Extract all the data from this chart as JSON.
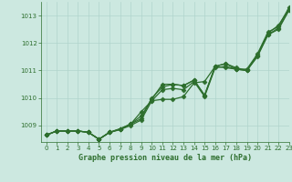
{
  "title": "Graphe pression niveau de la mer (hPa)",
  "xlim": [
    -0.5,
    23
  ],
  "ylim": [
    1008.4,
    1013.5
  ],
  "yticks": [
    1009,
    1010,
    1011,
    1012,
    1013
  ],
  "xticks": [
    0,
    1,
    2,
    3,
    4,
    5,
    6,
    7,
    8,
    9,
    10,
    11,
    12,
    13,
    14,
    15,
    16,
    17,
    18,
    19,
    20,
    21,
    22,
    23
  ],
  "bg_color": "#cce8e0",
  "grid_color": "#b0d4cc",
  "line_color": "#2d6e2d",
  "series1": [
    1008.65,
    1008.8,
    1008.8,
    1008.8,
    1008.75,
    1008.5,
    1008.75,
    1008.88,
    1009.05,
    1009.35,
    1009.95,
    1010.5,
    1010.5,
    1010.45,
    1010.65,
    1010.1,
    1011.15,
    1011.25,
    1011.1,
    1011.0,
    1011.55,
    1012.35,
    1012.65,
    1013.25
  ],
  "series2": [
    1008.65,
    1008.8,
    1008.8,
    1008.8,
    1008.75,
    1008.5,
    1008.75,
    1008.88,
    1009.05,
    1009.5,
    1009.9,
    1009.95,
    1009.95,
    1010.05,
    1010.55,
    1010.6,
    1011.15,
    1011.1,
    1011.05,
    1011.0,
    1011.5,
    1012.3,
    1012.55,
    1013.2
  ],
  "series3": [
    1008.65,
    1008.8,
    1008.8,
    1008.8,
    1008.75,
    1008.5,
    1008.75,
    1008.85,
    1009.05,
    1009.25,
    1010.0,
    1010.4,
    1010.5,
    1010.45,
    1010.65,
    1010.1,
    1011.15,
    1011.25,
    1011.05,
    1011.05,
    1011.6,
    1012.4,
    1012.6,
    1013.3
  ],
  "series4": [
    1008.65,
    1008.8,
    1008.8,
    1008.8,
    1008.75,
    1008.5,
    1008.75,
    1008.85,
    1009.0,
    1009.2,
    1009.9,
    1010.3,
    1010.35,
    1010.3,
    1010.6,
    1010.05,
    1011.1,
    1011.15,
    1011.05,
    1011.0,
    1011.55,
    1012.3,
    1012.5,
    1013.2
  ],
  "marker": "D",
  "markersize": 2.5,
  "linewidth": 0.9
}
